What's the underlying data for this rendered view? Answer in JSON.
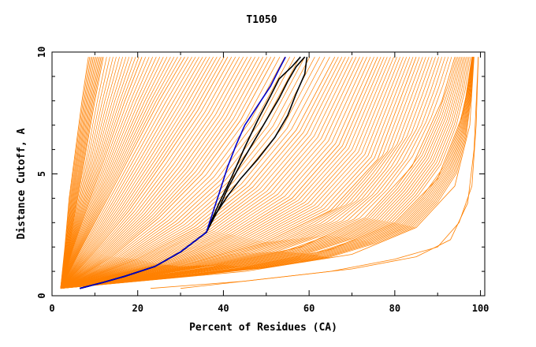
{
  "chart_data": {
    "type": "line",
    "title": "T1050",
    "xlabel": "Percent of Residues (CA)",
    "ylabel": "Distance Cutoff, A",
    "xlim": [
      0,
      101
    ],
    "ylim": [
      0,
      10
    ],
    "x_ticks": [
      0,
      20,
      40,
      60,
      80,
      100
    ],
    "y_ticks": [
      0,
      5,
      10
    ],
    "grid": false,
    "colors": {
      "bundle": "#ff8000",
      "highlight_black": "#000000",
      "highlight_blue": "#0000cc"
    },
    "series": [
      {
        "color": "black",
        "points": [
          [
            6.5,
            0.3
          ],
          [
            12,
            0.55
          ],
          [
            17,
            0.8
          ],
          [
            24,
            1.2
          ],
          [
            30,
            1.8
          ],
          [
            36,
            2.6
          ],
          [
            39,
            3.6
          ],
          [
            41,
            4.4
          ],
          [
            44,
            5.4
          ],
          [
            47,
            6.3
          ],
          [
            50,
            7.2
          ],
          [
            53,
            8.1
          ],
          [
            55,
            8.8
          ],
          [
            57,
            9.4
          ],
          [
            59,
            9.8
          ]
        ]
      },
      {
        "color": "black",
        "points": [
          [
            6.5,
            0.3
          ],
          [
            12,
            0.55
          ],
          [
            17,
            0.8
          ],
          [
            24,
            1.2
          ],
          [
            30,
            1.8
          ],
          [
            36,
            2.6
          ],
          [
            38,
            3.3
          ],
          [
            41,
            4.1
          ],
          [
            44,
            4.8
          ],
          [
            48,
            5.6
          ],
          [
            52,
            6.5
          ],
          [
            55,
            7.4
          ],
          [
            57,
            8.3
          ],
          [
            59,
            9.1
          ],
          [
            59.5,
            9.8
          ]
        ]
      },
      {
        "color": "black",
        "points": [
          [
            6.5,
            0.3
          ],
          [
            12,
            0.55
          ],
          [
            17,
            0.8
          ],
          [
            24,
            1.2
          ],
          [
            30,
            1.8
          ],
          [
            36,
            2.6
          ],
          [
            39,
            3.8
          ],
          [
            42,
            4.9
          ],
          [
            45,
            6.1
          ],
          [
            48,
            7.2
          ],
          [
            51,
            8.2
          ],
          [
            53,
            8.9
          ],
          [
            56,
            9.4
          ],
          [
            58,
            9.8
          ]
        ]
      },
      {
        "color": "blue",
        "points": [
          [
            6.5,
            0.3
          ],
          [
            12,
            0.55
          ],
          [
            17,
            0.8
          ],
          [
            24,
            1.2
          ],
          [
            30,
            1.8
          ],
          [
            36,
            2.6
          ],
          [
            39,
            4.2
          ],
          [
            41,
            5.3
          ],
          [
            43,
            6.2
          ],
          [
            45,
            7.0
          ],
          [
            48,
            7.8
          ],
          [
            51,
            8.6
          ],
          [
            53,
            9.3
          ],
          [
            54.5,
            9.8
          ]
        ]
      }
    ],
    "bundle": {
      "color": "orange",
      "description_curves": [
        {
          "points": [
            [
              2,
              0.3
            ],
            [
              3,
              2
            ],
            [
              4,
              4
            ],
            [
              5.5,
              6
            ],
            [
              7,
              8
            ],
            [
              8.5,
              9.8
            ]
          ]
        },
        {
          "points": [
            [
              2,
              0.3
            ],
            [
              4,
              2
            ],
            [
              6,
              4
            ],
            [
              8,
              6
            ],
            [
              10,
              8
            ],
            [
              12,
              9.8
            ]
          ]
        },
        {
          "points": [
            [
              2,
              0.3
            ],
            [
              5,
              2
            ],
            [
              9,
              4
            ],
            [
              13,
              6
            ],
            [
              17,
              8
            ],
            [
              21,
              9.8
            ]
          ]
        },
        {
          "points": [
            [
              2,
              0.3
            ],
            [
              7,
              2
            ],
            [
              13,
              4
            ],
            [
              19,
              6
            ],
            [
              25,
              8
            ],
            [
              31,
              9.8
            ]
          ]
        },
        {
          "points": [
            [
              2,
              0.3
            ],
            [
              10,
              1.8
            ],
            [
              18,
              3.5
            ],
            [
              26,
              5.5
            ],
            [
              34,
              7.6
            ],
            [
              41,
              9.8
            ]
          ]
        },
        {
          "points": [
            [
              2,
              0.3
            ],
            [
              14,
              1.6
            ],
            [
              25,
              3.2
            ],
            [
              35,
              5.0
            ],
            [
              44,
              7.2
            ],
            [
              52,
              9.8
            ]
          ]
        },
        {
          "points": [
            [
              2,
              0.3
            ],
            [
              20,
              1.5
            ],
            [
              34,
              2.8
            ],
            [
              46,
              4.5
            ],
            [
              57,
              6.8
            ],
            [
              66,
              9.8
            ]
          ]
        },
        {
          "points": [
            [
              2,
              0.3
            ],
            [
              25,
              1.3
            ],
            [
              42,
              2.5
            ],
            [
              56,
              4.0
            ],
            [
              67,
              6.2
            ],
            [
              76,
              9.8
            ]
          ]
        },
        {
          "points": [
            [
              2,
              0.3
            ],
            [
              30,
              1.2
            ],
            [
              50,
              2.2
            ],
            [
              65,
              3.5
            ],
            [
              76,
              5.6
            ],
            [
              85,
              9.8
            ]
          ]
        },
        {
          "points": [
            [
              2,
              0.3
            ],
            [
              35,
              1.1
            ],
            [
              58,
              2.0
            ],
            [
              73,
              3.2
            ],
            [
              84,
              5.3
            ],
            [
              91,
              8.0
            ],
            [
              94,
              9.8
            ]
          ]
        },
        {
          "points": [
            [
              2,
              0.3
            ],
            [
              40,
              1.0
            ],
            [
              65,
              1.9
            ],
            [
              80,
              3.0
            ],
            [
              90,
              4.8
            ],
            [
              96,
              7.5
            ],
            [
              98,
              9.8
            ]
          ]
        },
        {
          "points": [
            [
              2,
              0.3
            ],
            [
              45,
              1.0
            ],
            [
              70,
              1.7
            ],
            [
              85,
              2.8
            ],
            [
              94,
              4.5
            ],
            [
              97.5,
              7.0
            ],
            [
              98.5,
              9.8
            ]
          ]
        },
        {
          "points": [
            [
              23,
              0.3
            ],
            [
              45,
              0.6
            ],
            [
              65,
              1.0
            ],
            [
              80,
              1.5
            ],
            [
              90,
              2.0
            ],
            [
              95,
              3.0
            ],
            [
              98,
              4.5
            ],
            [
              99,
              7.0
            ],
            [
              99.5,
              9.8
            ]
          ]
        },
        {
          "points": [
            [
              30,
              0.3
            ],
            [
              50,
              0.7
            ],
            [
              70,
              1.1
            ],
            [
              85,
              1.6
            ],
            [
              93,
              2.3
            ],
            [
              97,
              3.8
            ],
            [
              98.5,
              6.0
            ],
            [
              99.5,
              9.8
            ]
          ]
        }
      ]
    }
  }
}
